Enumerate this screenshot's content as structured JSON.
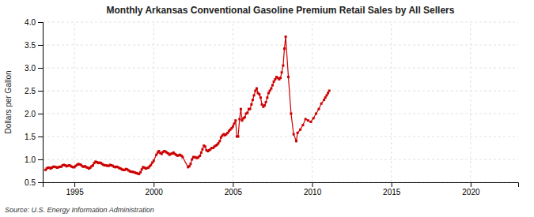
{
  "chart_data": {
    "type": "line",
    "title": "Monthly Arkansas Conventional Gasoline Premium Retail Sales by All Sellers",
    "ylabel": "Dollars per Gallon",
    "annotations": [
      "Source: U.S. Energy Information Administration"
    ],
    "color": "#cc0000",
    "marker": "square",
    "grid": true,
    "xlim": [
      1993.0,
      2023.0
    ],
    "ylim": [
      0.5,
      4.0
    ],
    "xticks": [
      1995,
      2000,
      2005,
      2010,
      2015,
      2020
    ],
    "yticks": [
      0.5,
      {
        "value": 1.0,
        "label": "1.0"
      },
      1.5,
      {
        "value": 2.0,
        "label": "2.0"
      },
      2.5,
      {
        "value": 3.0,
        "label": "3.0"
      },
      3.5,
      {
        "value": 4.0,
        "label": "4.0"
      }
    ],
    "x": [
      1993.17,
      1993.25,
      1993.33,
      1993.42,
      1993.5,
      1993.58,
      1993.67,
      1993.75,
      1993.83,
      1993.92,
      1994.0,
      1994.08,
      1994.17,
      1994.25,
      1994.33,
      1994.42,
      1994.5,
      1994.58,
      1994.67,
      1994.75,
      1994.83,
      1994.92,
      1995.0,
      1995.08,
      1995.17,
      1995.25,
      1995.33,
      1995.42,
      1995.5,
      1995.58,
      1995.67,
      1995.75,
      1995.83,
      1995.92,
      1996.0,
      1996.08,
      1996.17,
      1996.25,
      1996.33,
      1996.42,
      1996.5,
      1996.58,
      1996.67,
      1996.75,
      1996.83,
      1996.92,
      1997.0,
      1997.08,
      1997.17,
      1997.25,
      1997.33,
      1997.42,
      1997.5,
      1997.58,
      1997.67,
      1997.75,
      1997.83,
      1997.92,
      1998.0,
      1998.08,
      1998.17,
      1998.25,
      1998.33,
      1998.42,
      1998.5,
      1998.58,
      1998.67,
      1998.75,
      1998.83,
      1998.92,
      1999.0,
      1999.08,
      1999.17,
      1999.25,
      1999.33,
      1999.42,
      1999.5,
      1999.58,
      1999.67,
      1999.75,
      1999.83,
      1999.92,
      2000.0,
      2000.17,
      2000.25,
      2000.33,
      2000.42,
      2000.5,
      2000.58,
      2000.67,
      2000.75,
      2000.83,
      2000.92,
      2001.0,
      2001.08,
      2001.17,
      2001.25,
      2001.33,
      2001.42,
      2001.5,
      2001.58,
      2001.67,
      2001.75,
      2001.83,
      2002.17,
      2002.25,
      2002.33,
      2002.42,
      2002.5,
      2002.58,
      2002.67,
      2002.75,
      2002.83,
      2002.92,
      2003.0,
      2003.08,
      2003.17,
      2003.25,
      2003.33,
      2003.42,
      2003.5,
      2003.58,
      2003.67,
      2003.75,
      2003.83,
      2003.92,
      2004.0,
      2004.08,
      2004.17,
      2004.25,
      2004.33,
      2004.42,
      2004.5,
      2004.58,
      2004.67,
      2004.75,
      2004.83,
      2004.92,
      2005.0,
      2005.08,
      2005.17,
      2005.25,
      2005.33,
      2005.42,
      2005.5,
      2005.58,
      2005.67,
      2005.75,
      2005.83,
      2005.92,
      2006.0,
      2006.08,
      2006.17,
      2006.25,
      2006.33,
      2006.42,
      2006.5,
      2006.58,
      2006.67,
      2006.75,
      2006.83,
      2006.92,
      2007.0,
      2007.08,
      2007.17,
      2007.25,
      2007.33,
      2007.42,
      2007.5,
      2007.58,
      2007.67,
      2007.75,
      2007.83,
      2007.92,
      2008.0,
      2008.08,
      2008.17,
      2008.25,
      2008.33,
      2008.5,
      2008.67,
      2008.83,
      2009.0,
      2009.08,
      2009.25,
      2009.42,
      2009.58,
      2009.75,
      2009.92,
      2010.08,
      2010.25,
      2010.42,
      2010.58,
      2010.75,
      2010.83,
      2010.92,
      2011.0,
      2011.08
    ],
    "values": [
      0.77,
      0.8,
      0.82,
      0.82,
      0.8,
      0.82,
      0.84,
      0.84,
      0.83,
      0.82,
      0.83,
      0.84,
      0.84,
      0.87,
      0.88,
      0.87,
      0.85,
      0.86,
      0.87,
      0.86,
      0.84,
      0.83,
      0.83,
      0.86,
      0.88,
      0.9,
      0.89,
      0.88,
      0.85,
      0.84,
      0.85,
      0.83,
      0.82,
      0.8,
      0.82,
      0.85,
      0.87,
      0.92,
      0.95,
      0.94,
      0.92,
      0.93,
      0.92,
      0.9,
      0.88,
      0.87,
      0.87,
      0.86,
      0.86,
      0.88,
      0.87,
      0.86,
      0.84,
      0.83,
      0.84,
      0.83,
      0.81,
      0.8,
      0.78,
      0.77,
      0.77,
      0.79,
      0.78,
      0.76,
      0.74,
      0.73,
      0.73,
      0.72,
      0.71,
      0.7,
      0.69,
      0.68,
      0.72,
      0.78,
      0.83,
      0.82,
      0.8,
      0.81,
      0.82,
      0.85,
      0.88,
      0.93,
      0.97,
      1.1,
      1.15,
      1.18,
      1.14,
      1.12,
      1.16,
      1.18,
      1.17,
      1.15,
      1.13,
      1.1,
      1.12,
      1.13,
      1.15,
      1.12,
      1.1,
      1.08,
      1.09,
      1.1,
      1.08,
      1.05,
      0.83,
      0.85,
      0.9,
      1.0,
      1.05,
      1.05,
      1.04,
      1.03,
      1.05,
      1.08,
      1.15,
      1.22,
      1.3,
      1.28,
      1.2,
      1.18,
      1.2,
      1.22,
      1.25,
      1.25,
      1.28,
      1.3,
      1.32,
      1.35,
      1.4,
      1.48,
      1.52,
      1.55,
      1.53,
      1.55,
      1.58,
      1.62,
      1.65,
      1.68,
      1.72,
      1.78,
      1.85,
      1.5,
      1.5,
      1.88,
      2.1,
      1.85,
      1.9,
      1.92,
      2.0,
      2.02,
      2.1,
      2.1,
      2.2,
      2.3,
      2.4,
      2.5,
      2.55,
      2.45,
      2.42,
      2.35,
      2.2,
      2.15,
      2.18,
      2.25,
      2.35,
      2.45,
      2.5,
      2.55,
      2.62,
      2.7,
      2.75,
      2.8,
      2.78,
      2.75,
      2.78,
      2.9,
      3.05,
      3.42,
      3.68,
      2.8,
      2.0,
      1.55,
      1.4,
      1.58,
      1.65,
      1.75,
      1.88,
      1.85,
      1.82,
      1.9,
      2.0,
      2.1,
      2.22,
      2.3,
      2.35,
      2.4,
      2.45,
      2.5
    ]
  }
}
